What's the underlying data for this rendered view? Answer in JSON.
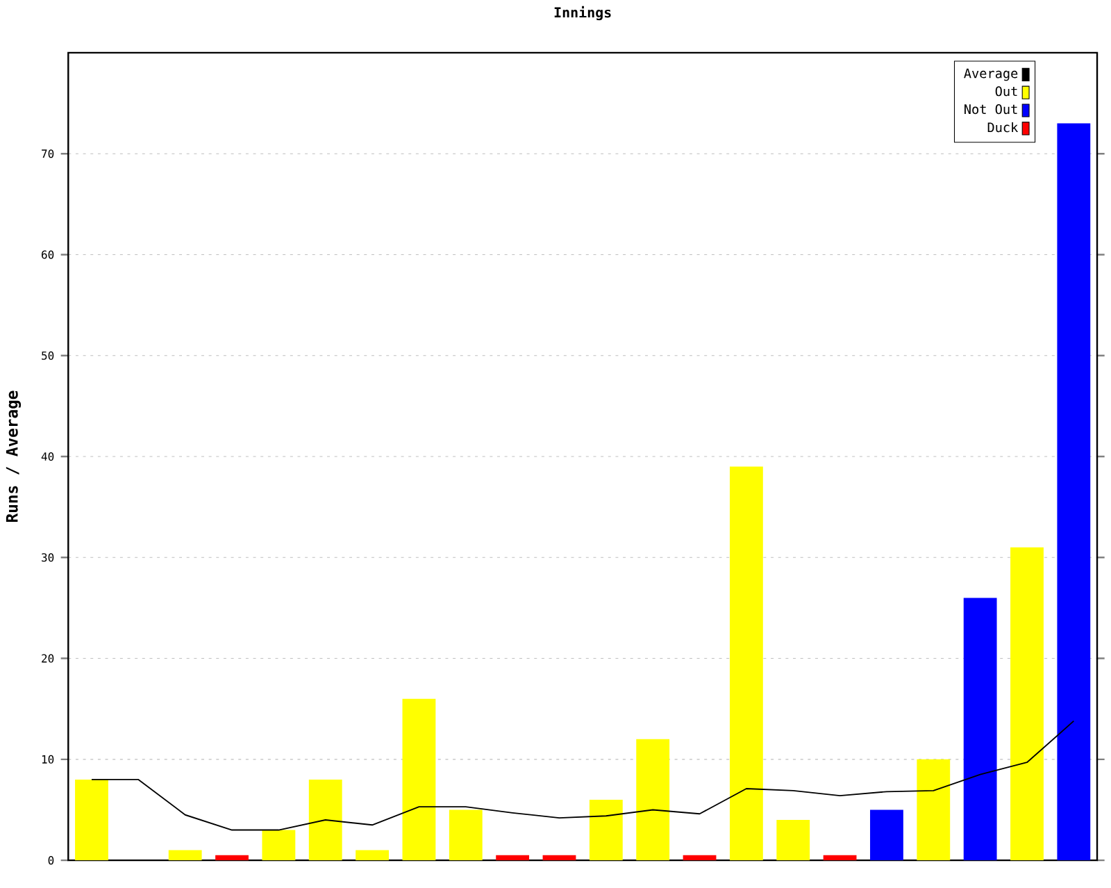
{
  "chart_data": {
    "type": "bar",
    "title": "Innings",
    "ylabel": "Runs / Average",
    "categories": [
      null,
      null,
      null,
      null,
      null,
      null,
      null,
      null,
      null,
      null,
      null,
      null,
      null,
      null,
      null,
      null,
      null,
      null,
      null,
      null,
      null,
      null
    ],
    "series": [
      {
        "name": "Average",
        "type": "line",
        "color": "#000000",
        "values": [
          8,
          8,
          4.5,
          3,
          3,
          4,
          3.5,
          5.3,
          5.3,
          4.7,
          4.2,
          4.4,
          5,
          4.6,
          7.1,
          6.9,
          6.4,
          6.8,
          6.9,
          8.5,
          9.7,
          13.8
        ]
      },
      {
        "name": "Out",
        "color": "#ffff00",
        "values": [
          8,
          null,
          1,
          null,
          3,
          8,
          1,
          16,
          5,
          null,
          null,
          6,
          12,
          null,
          39,
          4,
          null,
          null,
          10,
          null,
          31,
          null
        ]
      },
      {
        "name": "Not Out",
        "color": "#0000ff",
        "values": [
          null,
          null,
          null,
          null,
          null,
          null,
          null,
          null,
          null,
          null,
          null,
          null,
          null,
          null,
          null,
          null,
          null,
          5,
          null,
          26,
          null,
          73
        ]
      },
      {
        "name": "Duck",
        "color": "#ff0000",
        "values": [
          null,
          null,
          null,
          0.5,
          null,
          null,
          null,
          null,
          null,
          0.5,
          0.5,
          null,
          null,
          0.5,
          null,
          null,
          0.5,
          null,
          null,
          null,
          null,
          null
        ]
      }
    ],
    "ylim": [
      0,
      80
    ],
    "yticks": [
      0,
      10,
      20,
      30,
      40,
      50,
      60,
      70
    ],
    "grid": "y",
    "legend": "top right",
    "marker": "none"
  }
}
